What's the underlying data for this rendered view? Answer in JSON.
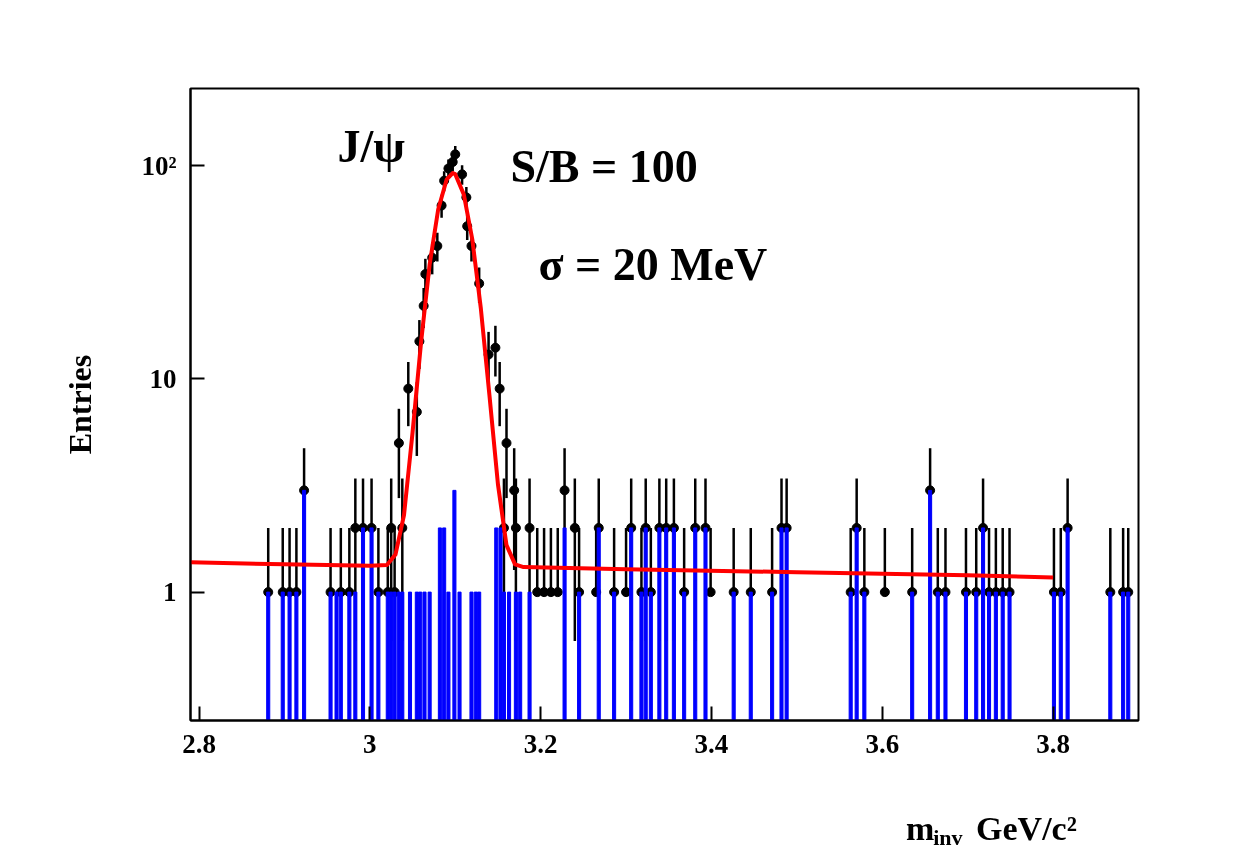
{
  "chart_data": {
    "type": "scatter",
    "xlabel": "m$_{inv}$ GeV/c²",
    "ylabel": "Entries",
    "annotations": [
      "J/ψ",
      "S/B = 100",
      "σ = 20 MeV"
    ],
    "xlim": [
      2.79,
      3.9
    ],
    "ylim": [
      0.25,
      230
    ],
    "xticks": [
      2.8,
      3,
      3.2,
      3.4,
      3.6,
      3.8
    ],
    "yticks": [
      1,
      10,
      {
        "value": 100,
        "label": "10²"
      }
    ],
    "log": true,
    "grid": false,
    "series": [
      {
        "type": "bar",
        "color": "#0000ff",
        "x": [
          2.881,
          2.898,
          2.906,
          2.914,
          2.923,
          2.954,
          2.961,
          2.966,
          2.976,
          2.983,
          2.992,
          3.002,
          3.01,
          3.021,
          3.025,
          3.029,
          3.034,
          3.038,
          3.047,
          3.055,
          3.059,
          3.064,
          3.07,
          3.082,
          3.087,
          3.092,
          3.099,
          3.105,
          3.119,
          3.124,
          3.128,
          3.148,
          3.153,
          3.157,
          3.163,
          3.171,
          3.176,
          3.187,
          3.228,
          3.245,
          3.268,
          3.286,
          3.306,
          3.318,
          3.323,
          3.329,
          3.339,
          3.347,
          3.356,
          3.368,
          3.381,
          3.393,
          3.426,
          3.446,
          3.471,
          3.482,
          3.488,
          3.563,
          3.57,
          3.579,
          3.635,
          3.656,
          3.665,
          3.674,
          3.698,
          3.71,
          3.718,
          3.725,
          3.733,
          3.741,
          3.749,
          3.801,
          3.809,
          3.817,
          3.867,
          3.882,
          3.888
        ],
        "values": [
          1,
          1,
          1,
          1,
          3,
          1,
          1,
          1,
          1,
          1,
          2,
          2,
          1,
          1,
          1,
          1,
          1,
          1,
          1,
          1,
          1,
          1,
          1,
          2,
          2,
          1,
          3,
          1,
          1,
          1,
          1,
          2,
          2,
          1,
          1,
          1,
          1,
          1,
          2,
          1,
          2,
          1,
          2,
          1,
          2,
          1,
          2,
          2,
          2,
          1,
          2,
          2,
          1,
          1,
          1,
          2,
          2,
          1,
          2,
          1,
          1,
          3,
          1,
          1,
          1,
          1,
          2,
          1,
          1,
          1,
          1,
          1,
          1,
          2,
          1,
          1,
          1
        ]
      },
      {
        "color": "#000000",
        "marker": "circle",
        "x": [
          2.881,
          2.898,
          2.906,
          2.914,
          2.923,
          2.954,
          2.966,
          2.976,
          2.983,
          2.992,
          3.002,
          3.01,
          3.021,
          3.025,
          3.029,
          3.034,
          3.038,
          3.045,
          3.055,
          3.058,
          3.063,
          3.065,
          3.073,
          3.079,
          3.084,
          3.087,
          3.092,
          3.097,
          3.1,
          3.108,
          3.113,
          3.114,
          3.119,
          3.128,
          3.139,
          3.147,
          3.152,
          3.157,
          3.16,
          3.169,
          3.171,
          3.187,
          3.196,
          3.204,
          3.212,
          3.22,
          3.228,
          3.24,
          3.245,
          3.265,
          3.268,
          3.286,
          3.3,
          3.306,
          3.318,
          3.323,
          3.329,
          3.339,
          3.347,
          3.356,
          3.368,
          3.381,
          3.393,
          3.399,
          3.426,
          3.446,
          3.471,
          3.482,
          3.488,
          3.563,
          3.57,
          3.579,
          3.603,
          3.635,
          3.656,
          3.665,
          3.674,
          3.698,
          3.71,
          3.718,
          3.725,
          3.733,
          3.741,
          3.749,
          3.801,
          3.809,
          3.817,
          3.867,
          3.882,
          3.888
        ],
        "values": [
          1,
          1,
          1,
          1,
          3,
          1,
          1,
          1,
          2,
          2,
          2,
          1,
          1,
          2,
          1,
          5,
          2,
          9,
          7,
          15,
          22,
          31,
          37,
          42,
          65,
          85,
          97,
          104,
          113,
          91,
          71,
          52,
          42,
          28,
          13,
          14,
          9,
          2,
          5,
          3,
          2,
          2,
          1,
          1,
          1,
          1,
          3,
          2,
          1,
          1,
          2,
          1,
          1,
          2,
          1,
          2,
          1,
          2,
          2,
          2,
          1,
          2,
          2,
          1,
          1,
          1,
          1,
          2,
          2,
          1,
          2,
          1,
          1,
          1,
          3,
          1,
          1,
          1,
          1,
          2,
          1,
          1,
          1,
          1,
          1,
          1,
          2,
          1,
          1,
          1
        ],
        "errors": [
          1,
          1,
          1,
          1,
          1.73,
          1,
          1,
          1,
          1.41,
          1.41,
          1.41,
          1,
          1,
          1.41,
          1,
          2.24,
          1.41,
          3,
          2.65,
          3.87,
          4.69,
          5.57,
          6.08,
          6.48,
          8.06,
          9.22,
          9.85,
          10.2,
          10.63,
          9.54,
          8.43,
          7.21,
          6.48,
          5.29,
          3.61,
          3.74,
          3,
          1.41,
          2.24,
          1.73,
          1.41,
          1.41,
          1,
          1,
          1,
          1,
          1.73,
          1.41,
          1,
          1,
          1.41,
          1,
          1,
          1.41,
          1,
          1.41,
          1,
          1.41,
          1.41,
          1.41,
          1,
          1.41,
          1.41,
          1,
          1,
          1,
          1,
          1.41,
          1.41,
          1,
          1.41,
          1,
          1,
          1,
          1.73,
          1,
          1,
          1,
          1,
          1.41,
          1,
          1,
          1,
          1,
          1,
          1,
          1.41,
          1,
          1,
          1
        ]
      },
      {
        "type": "line",
        "color": "#ff0000",
        "line_style": "solid",
        "x": [
          2.79,
          2.9,
          3.0,
          3.02,
          3.03,
          3.04,
          3.05,
          3.06,
          3.07,
          3.08,
          3.09,
          3.097,
          3.1,
          3.11,
          3.12,
          3.13,
          3.14,
          3.15,
          3.16,
          3.17,
          3.18,
          3.3,
          3.5,
          3.7,
          3.8
        ],
        "values": [
          1.38,
          1.35,
          1.33,
          1.34,
          1.5,
          2.3,
          5.6,
          14.9,
          34.4,
          62.3,
          86.3,
          92.3,
          91.2,
          73.3,
          45,
          21.3,
          8.4,
          3.2,
          1.66,
          1.35,
          1.31,
          1.28,
          1.24,
          1.2,
          1.17
        ]
      }
    ]
  }
}
